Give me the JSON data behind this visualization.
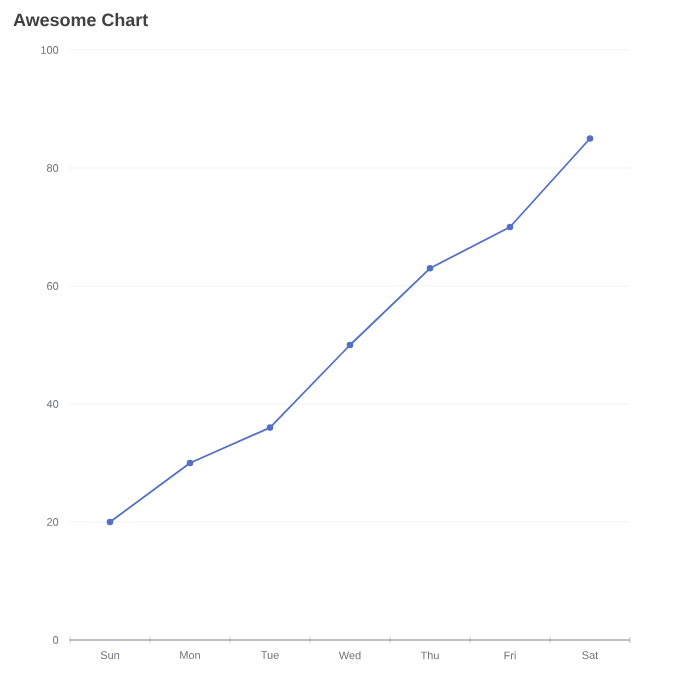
{
  "chart_data": {
    "type": "line",
    "title": "Awesome Chart",
    "categories": [
      "Sun",
      "Mon",
      "Tue",
      "Wed",
      "Thu",
      "Fri",
      "Sat"
    ],
    "values": [
      20,
      30,
      36,
      50,
      63,
      70,
      85
    ],
    "color": "#5470c6",
    "ylim": [
      0,
      100
    ],
    "yticks": [
      0,
      20,
      40,
      60,
      80,
      100
    ],
    "grid": "y",
    "marker": "circle"
  }
}
